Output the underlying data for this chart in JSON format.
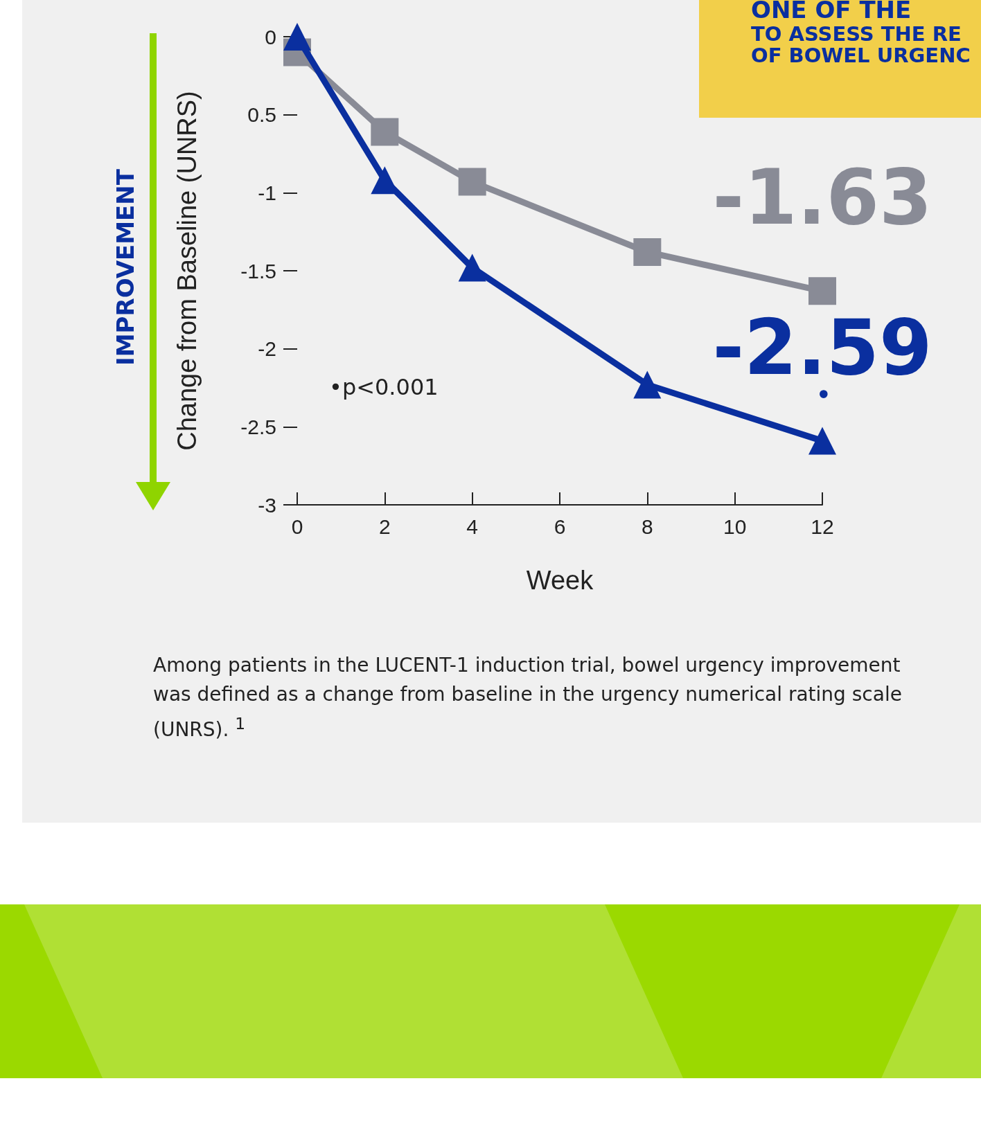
{
  "chart_data": {
    "type": "line",
    "title": "ONE OF THE",
    "subtitle": "TO ASSESS THE RE\nOF BOWEL URGENC",
    "xlabel": "Week",
    "ylabel": "Change from Baseline (UNRS)",
    "annotations": [
      "IMPROVEMENT",
      "•p<0.001",
      "•",
      "Among patients in the LUCENT-1 induction trial, bowel urgency improvement was defined as a change from baseline in the urgency numerical rating scale (UNRS). $^{1}$"
    ],
    "x": [
      0,
      2,
      4,
      8,
      12
    ],
    "series": [
      {
        "color": "#898b96",
        "marker": "square",
        "values": [
          -0.1,
          -0.61,
          -0.93,
          -1.38,
          -1.63
        ],
        "value_labels": [
          null,
          null,
          null,
          null,
          "-1.63"
        ]
      },
      {
        "color": "#0a2f9f",
        "marker": "triangle",
        "values": [
          0,
          -0.92,
          -1.48,
          -2.23,
          -2.59
        ],
        "value_labels": [
          null,
          null,
          null,
          null,
          "-2.59"
        ]
      }
    ],
    "xlim": [
      0,
      12
    ],
    "xticks": [
      0,
      2,
      4,
      6,
      8,
      10,
      12
    ],
    "ylim": [
      -3,
      0
    ],
    "yticks": [
      0,
      {
        "value": -0.5,
        "label": "0.5"
      },
      -1,
      -1.5,
      -2,
      -2.5,
      -3
    ],
    "grid": false,
    "line_style": "solid"
  }
}
